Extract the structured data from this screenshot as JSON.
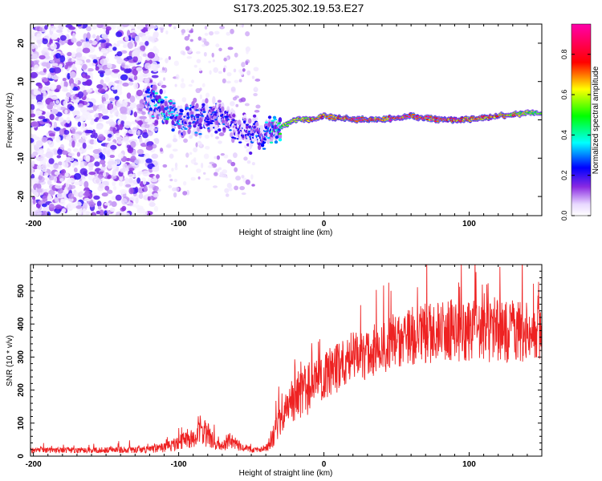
{
  "title": "S173.2025.302.19.53.E27",
  "chart_data": [
    {
      "type": "heatmap",
      "xlabel": "Height of straight line (km)",
      "ylabel": "Frequency (Hz)",
      "xlim": [
        -202,
        150
      ],
      "ylim": [
        -25,
        25
      ],
      "xticks": [
        -200,
        -100,
        0,
        100
      ],
      "xtick_labels": [
        "-200",
        "-100",
        "0",
        "100"
      ],
      "yticks": [
        -20,
        -10,
        0,
        10,
        20
      ],
      "ytick_labels": [
        "-20",
        "-10",
        "0",
        "10",
        "20"
      ],
      "colorbar": {
        "label": "Normalized spectral amplitude",
        "range": [
          0,
          0.95
        ],
        "ticks": [
          0.0,
          0.2,
          0.4,
          0.6,
          0.8
        ],
        "tick_labels": [
          "0.0",
          "0.2",
          "0.4",
          "0.6",
          "0.8"
        ],
        "colormap": "rainbow (white-violet-blue-cyan-green-yellow-red-magenta)"
      },
      "ridge": {
        "description": "Frequency of maximum spectral amplitude vs height",
        "x": [
          -120,
          -110,
          -100,
          -90,
          -80,
          -70,
          -60,
          -50,
          -40,
          -30,
          -20,
          -10,
          0,
          20,
          40,
          60,
          80,
          100,
          120,
          150
        ],
        "freq": [
          5,
          3,
          0,
          0,
          1,
          0,
          -2,
          -3,
          -4,
          -2,
          0,
          0,
          1,
          0,
          0,
          1,
          0,
          0,
          1,
          2
        ],
        "amplitude": [
          0.35,
          0.45,
          0.35,
          0.3,
          0.3,
          0.3,
          0.25,
          0.3,
          0.35,
          0.55,
          0.7,
          0.75,
          0.8,
          0.95,
          0.9,
          0.95,
          0.9,
          0.85,
          0.8,
          0.55
        ]
      },
      "noise_region": {
        "x_range": [
          -202,
          -115
        ],
        "freq_range": [
          -25,
          25
        ],
        "typical_amplitude": [
          0.02,
          0.15
        ]
      }
    },
    {
      "type": "line",
      "xlabel": "Height of straight line (km)",
      "ylabel": "SNR (10 * v/v)",
      "xlim": [
        -202,
        150
      ],
      "ylim": [
        0,
        580
      ],
      "xticks": [
        -200,
        -100,
        0,
        100
      ],
      "xtick_labels": [
        "-200",
        "-100",
        "0",
        "100"
      ],
      "yticks": [
        0,
        100,
        200,
        300,
        400,
        500
      ],
      "ytick_labels": [
        "0",
        "100",
        "200",
        "300",
        "400",
        "500"
      ],
      "color": "#ee2222",
      "envelope": {
        "description": "Approximate mean SNR and fluctuation amplitude vs height",
        "x": [
          -202,
          -160,
          -120,
          -110,
          -100,
          -90,
          -85,
          -80,
          -75,
          -70,
          -65,
          -60,
          -55,
          -50,
          -45,
          -40,
          -35,
          -30,
          -25,
          -20,
          -15,
          -10,
          -5,
          0,
          5,
          10,
          20,
          30,
          40,
          50,
          60,
          70,
          80,
          90,
          100,
          110,
          120,
          130,
          140,
          150
        ],
        "mean": [
          18,
          18,
          20,
          25,
          40,
          60,
          80,
          65,
          40,
          30,
          45,
          35,
          25,
          20,
          18,
          25,
          60,
          110,
          150,
          170,
          200,
          200,
          220,
          240,
          250,
          270,
          300,
          310,
          330,
          350,
          360,
          370,
          375,
          380,
          380,
          375,
          380,
          380,
          375,
          370
        ],
        "spread": [
          12,
          12,
          14,
          18,
          30,
          45,
          70,
          50,
          30,
          20,
          35,
          25,
          15,
          12,
          10,
          18,
          45,
          60,
          70,
          90,
          110,
          100,
          100,
          100,
          95,
          100,
          100,
          110,
          115,
          120,
          120,
          120,
          125,
          130,
          125,
          120,
          130,
          125,
          120,
          110
        ]
      }
    }
  ]
}
